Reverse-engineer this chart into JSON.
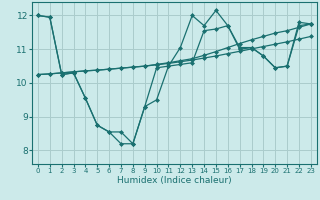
{
  "title": "",
  "xlabel": "Humidex (Indice chaleur)",
  "line_color": "#1a7070",
  "bg_color": "#cceaea",
  "grid_color": "#aacccc",
  "xlim": [
    -0.5,
    23.5
  ],
  "ylim": [
    7.6,
    12.4
  ],
  "yticks": [
    8,
    9,
    10,
    11,
    12
  ],
  "xticks": [
    0,
    1,
    2,
    3,
    4,
    5,
    6,
    7,
    8,
    9,
    10,
    11,
    12,
    13,
    14,
    15,
    16,
    17,
    18,
    19,
    20,
    21,
    22,
    23
  ],
  "lines": [
    [
      12.0,
      11.95,
      10.25,
      10.3,
      9.55,
      8.75,
      8.55,
      8.2,
      8.2,
      9.3,
      9.5,
      10.5,
      10.55,
      10.6,
      11.55,
      11.6,
      11.7,
      11.0,
      11.05,
      10.8,
      10.45,
      10.5,
      11.7,
      11.75
    ],
    [
      12.0,
      11.95,
      10.25,
      10.3,
      9.55,
      8.75,
      8.55,
      8.55,
      8.2,
      9.3,
      10.45,
      10.5,
      11.05,
      12.0,
      11.7,
      12.15,
      11.7,
      11.05,
      11.05,
      10.8,
      10.45,
      10.5,
      11.8,
      11.75
    ],
    [
      10.25,
      10.27,
      10.3,
      10.33,
      10.36,
      10.38,
      10.41,
      10.44,
      10.47,
      10.5,
      10.54,
      10.58,
      10.63,
      10.68,
      10.74,
      10.8,
      10.87,
      10.94,
      11.01,
      11.08,
      11.15,
      11.22,
      11.3,
      11.38
    ],
    [
      10.25,
      10.27,
      10.3,
      10.33,
      10.36,
      10.38,
      10.41,
      10.44,
      10.47,
      10.5,
      10.55,
      10.6,
      10.66,
      10.72,
      10.82,
      10.93,
      11.05,
      11.17,
      11.28,
      11.38,
      11.48,
      11.55,
      11.65,
      11.75
    ]
  ]
}
